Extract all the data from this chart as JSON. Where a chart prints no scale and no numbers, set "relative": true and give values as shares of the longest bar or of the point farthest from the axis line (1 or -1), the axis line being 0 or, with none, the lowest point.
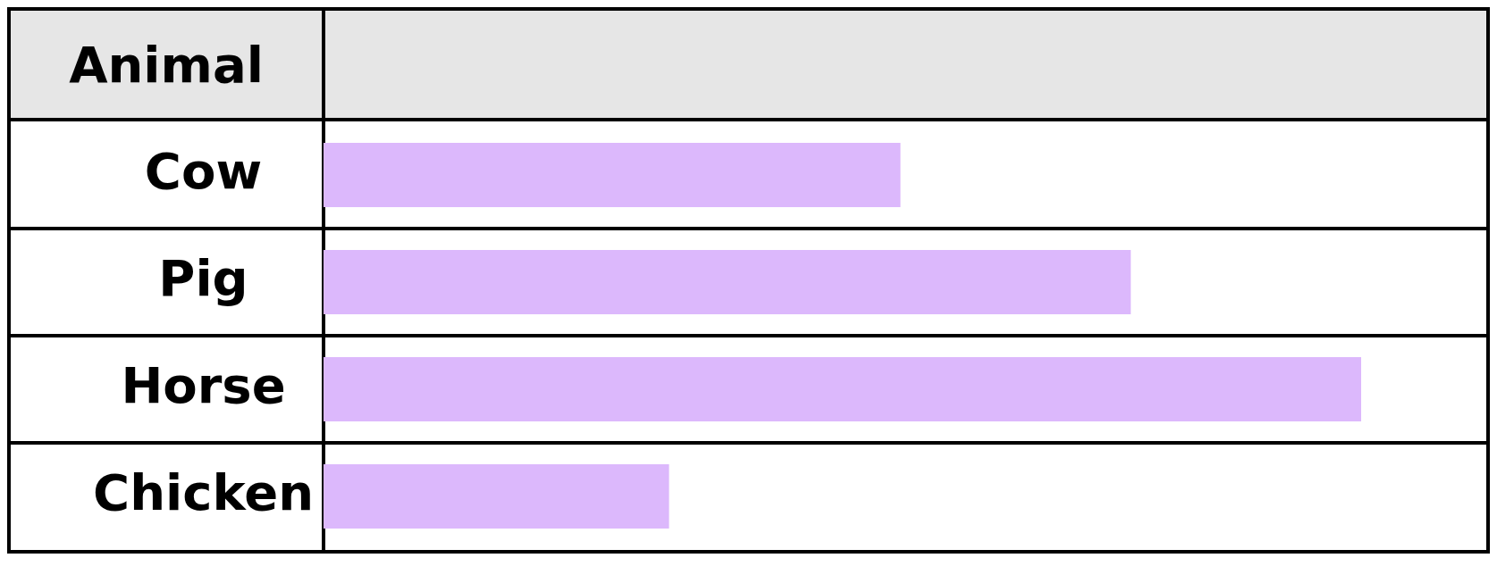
{
  "chart_data": {
    "type": "bar",
    "orientation": "horizontal",
    "relative": true,
    "ylabel": "Animal",
    "categories": [
      "Cow",
      "Pig",
      "Horse",
      "Chicken"
    ],
    "values": [
      0.556,
      0.778,
      1,
      0.333
    ],
    "color": "#dcb8fc",
    "grid": "y",
    "legend": false
  }
}
